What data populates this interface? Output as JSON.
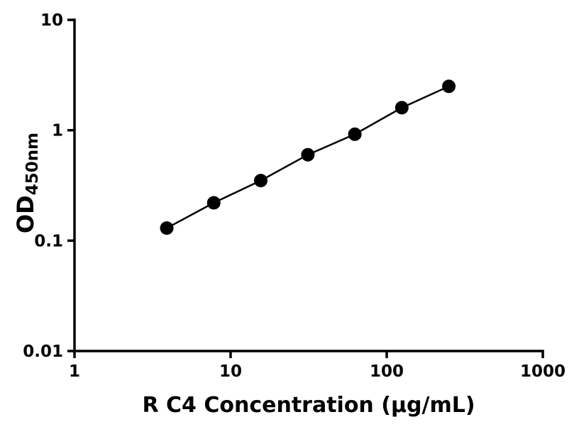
{
  "chart_data": {
    "type": "scatter",
    "mode": "markers+line",
    "x": [
      3.9,
      7.8,
      15.6,
      31.25,
      62.5,
      125,
      250
    ],
    "y": [
      0.13,
      0.22,
      0.35,
      0.6,
      0.92,
      1.6,
      2.5
    ],
    "xlabel": "R C4 Concentration (μg/mL)",
    "ylabel": "OD450nm",
    "ylabel_main": "OD",
    "ylabel_sub": "450nm",
    "x_scale": "log",
    "y_scale": "log",
    "xlim": [
      1,
      1000
    ],
    "ylim": [
      0.01,
      10
    ],
    "x_tick_values": [
      1,
      10,
      100,
      1000
    ],
    "x_tick_labels": [
      "1",
      "10",
      "100",
      "1000"
    ],
    "y_tick_values": [
      0.01,
      0.1,
      1,
      10
    ],
    "y_tick_labels": [
      "0.01",
      "0.1",
      "1",
      "10"
    ],
    "grid": false,
    "legend_position": "none",
    "colors": {
      "marker": "#000000",
      "line": "#000000",
      "axis": "#000000",
      "text": "#000000",
      "background": "#ffffff"
    }
  }
}
